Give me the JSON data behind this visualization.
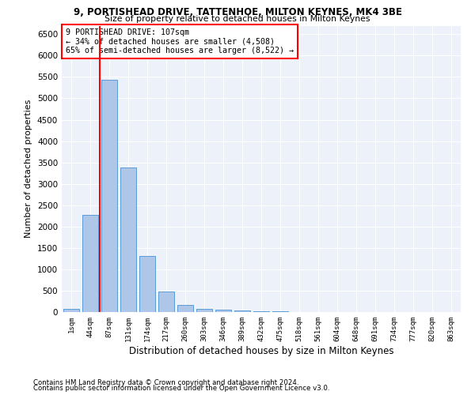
{
  "title1": "9, PORTISHEAD DRIVE, TATTENHOE, MILTON KEYNES, MK4 3BE",
  "title2": "Size of property relative to detached houses in Milton Keynes",
  "xlabel": "Distribution of detached houses by size in Milton Keynes",
  "ylabel": "Number of detached properties",
  "footnote1": "Contains HM Land Registry data © Crown copyright and database right 2024.",
  "footnote2": "Contains public sector information licensed under the Open Government Licence v3.0.",
  "annotation_line1": "9 PORTISHEAD DRIVE: 107sqm",
  "annotation_line2": "← 34% of detached houses are smaller (4,508)",
  "annotation_line3": "65% of semi-detached houses are larger (8,522) →",
  "bar_color": "#aec6e8",
  "bar_edge_color": "#5b9bd5",
  "marker_color": "#ff0000",
  "categories": [
    "1sqm",
    "44sqm",
    "87sqm",
    "131sqm",
    "174sqm",
    "217sqm",
    "260sqm",
    "303sqm",
    "346sqm",
    "389sqm",
    "432sqm",
    "475sqm",
    "518sqm",
    "561sqm",
    "604sqm",
    "648sqm",
    "691sqm",
    "734sqm",
    "777sqm",
    "820sqm",
    "863sqm"
  ],
  "values": [
    70,
    2280,
    5440,
    3380,
    1320,
    480,
    160,
    80,
    55,
    30,
    20,
    10,
    5,
    3,
    2,
    1,
    1,
    0,
    0,
    0,
    0
  ],
  "ylim": [
    0,
    6700
  ],
  "yticks": [
    0,
    500,
    1000,
    1500,
    2000,
    2500,
    3000,
    3500,
    4000,
    4500,
    5000,
    5500,
    6000,
    6500
  ],
  "vline_x_index": 2,
  "bg_color": "#edf1f9",
  "grid_color": "#ffffff"
}
